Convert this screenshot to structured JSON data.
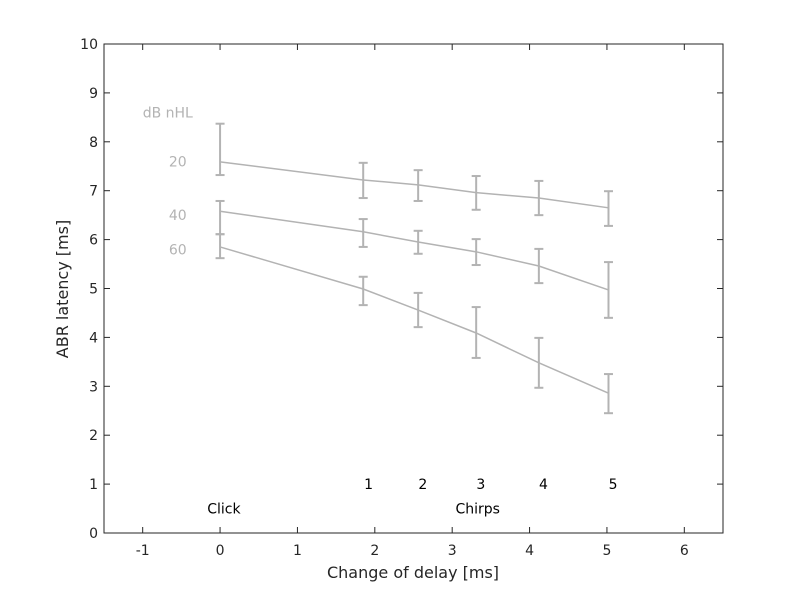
{
  "chart_data": {
    "type": "line",
    "title": "",
    "xlabel": "Change of delay [ms]",
    "ylabel": "ABR latency [ms]",
    "xlim": [
      -1.5,
      6.5
    ],
    "ylim": [
      0,
      10
    ],
    "xticks": [
      -1,
      0,
      1,
      2,
      3,
      4,
      5,
      6
    ],
    "yticks": [
      0,
      1,
      2,
      3,
      4,
      5,
      6,
      7,
      8,
      9,
      10
    ],
    "grid": false,
    "legend": null,
    "x": [
      0,
      1.85,
      2.56,
      3.31,
      4.12,
      5.02
    ],
    "stimulus_labels": [
      "Click",
      "Chirp 1",
      "Chirp 2",
      "Chirp 3",
      "Chirp 4",
      "Chirp 5"
    ],
    "series": [
      {
        "name": "20 dB nHL",
        "values": [
          7.59,
          7.22,
          7.12,
          6.96,
          6.85,
          6.65
        ],
        "err_upper": [
          8.37,
          7.57,
          7.42,
          7.3,
          7.2,
          6.99
        ],
        "err_lower": [
          7.32,
          6.85,
          6.79,
          6.61,
          6.5,
          6.28
        ]
      },
      {
        "name": "40 dB nHL",
        "values": [
          6.58,
          6.16,
          5.95,
          5.75,
          5.46,
          4.97
        ],
        "err_upper": [
          6.79,
          6.42,
          6.18,
          6.01,
          5.81,
          5.54
        ],
        "err_lower": [
          6.11,
          5.85,
          5.71,
          5.48,
          5.11,
          4.4
        ]
      },
      {
        "name": "60 dB nHL",
        "values": [
          5.85,
          4.99,
          4.56,
          4.09,
          3.48,
          2.86
        ],
        "err_upper": [
          6.11,
          5.24,
          4.91,
          4.62,
          3.99,
          3.25
        ],
        "err_lower": [
          5.62,
          4.66,
          4.21,
          3.58,
          2.97,
          2.45
        ]
      }
    ],
    "series_color": "#b3b3b3",
    "annotations": {
      "level_header": "dB nHL",
      "levels": [
        {
          "text": "20",
          "x": -0.7,
          "y": 7.6
        },
        {
          "text": "40",
          "x": -0.7,
          "y": 6.5
        },
        {
          "text": "60",
          "x": -0.7,
          "y": 5.8
        }
      ],
      "chirp_numbers": [
        {
          "text": "1",
          "x": 1.92
        },
        {
          "text": "2",
          "x": 2.62
        },
        {
          "text": "3",
          "x": 3.37
        },
        {
          "text": "4",
          "x": 4.18
        },
        {
          "text": "5",
          "x": 5.08
        }
      ],
      "chirp_numbers_y": 1.0,
      "click_label": {
        "text": "Click",
        "x": 0.05
      },
      "chirps_label": {
        "text": "Chirps",
        "x": 3.33
      },
      "group_labels_y": 0.5
    }
  }
}
